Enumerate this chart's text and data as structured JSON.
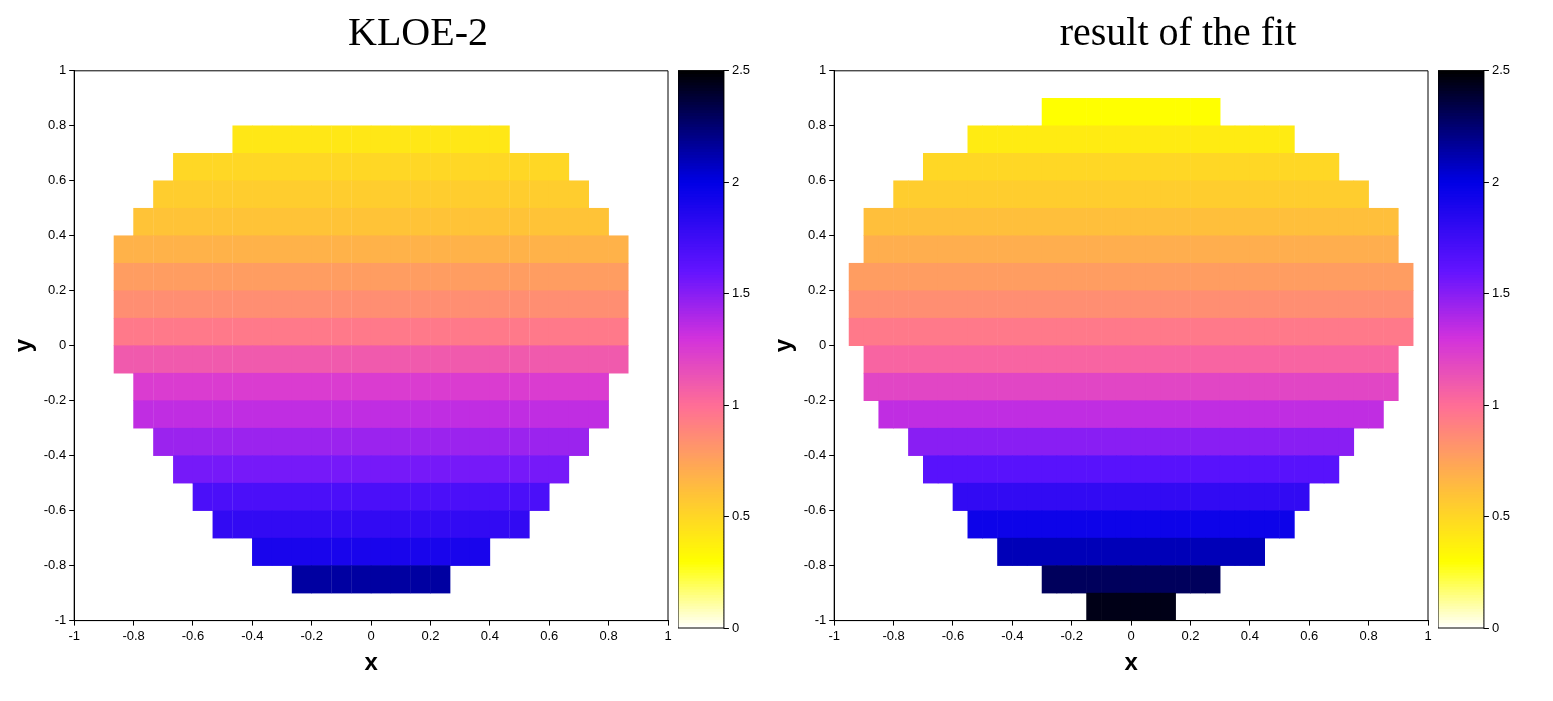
{
  "chart_data": [
    {
      "type": "heatmap",
      "title": "KLOE-2",
      "xlabel": "x",
      "ylabel": "y",
      "xlim": [
        -1,
        1
      ],
      "ylim": [
        -1,
        1
      ],
      "xticks": [
        -1,
        -0.8,
        -0.6,
        -0.4,
        -0.2,
        0,
        0.2,
        0.4,
        0.6,
        0.8,
        1
      ],
      "yticks": [
        -1,
        -0.8,
        -0.6,
        -0.4,
        -0.2,
        0,
        0.2,
        0.4,
        0.6,
        0.8,
        1
      ],
      "clim": [
        0,
        2.5
      ],
      "cticks": [
        0,
        0.5,
        1,
        1.5,
        2,
        2.5
      ],
      "x": [
        -0.833,
        -0.767,
        -0.7,
        -0.633,
        -0.567,
        -0.5,
        -0.433,
        -0.367,
        -0.3,
        -0.233,
        -0.167,
        -0.1,
        -0.033,
        0.033,
        0.1,
        0.167,
        0.233,
        0.3,
        0.367,
        0.433,
        0.5,
        0.567,
        0.633,
        0.7,
        0.767,
        0.833
      ],
      "y": [
        0.75,
        0.65,
        0.55,
        0.45,
        0.35,
        0.25,
        0.15,
        0.05,
        -0.05,
        -0.15,
        -0.25,
        -0.35,
        -0.45,
        -0.55,
        -0.65,
        -0.75,
        -0.85
      ],
      "cells": [
        [
          null,
          null,
          null,
          null,
          null,
          null,
          0.42,
          0.42,
          0.42,
          0.42,
          0.42,
          0.42,
          0.42,
          0.42,
          0.42,
          0.42,
          0.42,
          0.42,
          0.42,
          0.42,
          null,
          null,
          null,
          null,
          null,
          null
        ],
        [
          null,
          null,
          null,
          0.5,
          0.5,
          0.5,
          0.5,
          0.5,
          0.5,
          0.5,
          0.5,
          0.5,
          0.5,
          0.5,
          0.5,
          0.5,
          0.5,
          0.5,
          0.5,
          0.5,
          0.5,
          0.5,
          0.5,
          null,
          null,
          null
        ],
        [
          null,
          null,
          0.55,
          0.55,
          0.55,
          0.55,
          0.55,
          0.55,
          0.55,
          0.55,
          0.55,
          0.55,
          0.55,
          0.55,
          0.55,
          0.55,
          0.55,
          0.55,
          0.55,
          0.55,
          0.55,
          0.55,
          0.55,
          0.55,
          null,
          null
        ],
        [
          null,
          0.6,
          0.6,
          0.6,
          0.6,
          0.6,
          0.6,
          0.6,
          0.6,
          0.6,
          0.6,
          0.6,
          0.6,
          0.6,
          0.6,
          0.6,
          0.6,
          0.6,
          0.6,
          0.6,
          0.6,
          0.6,
          0.6,
          0.6,
          0.6,
          null
        ],
        [
          0.68,
          0.68,
          0.68,
          0.68,
          0.68,
          0.68,
          0.68,
          0.68,
          0.68,
          0.68,
          0.68,
          0.68,
          0.68,
          0.68,
          0.68,
          0.68,
          0.68,
          0.68,
          0.68,
          0.68,
          0.68,
          0.68,
          0.68,
          0.68,
          0.68,
          0.68
        ],
        [
          0.78,
          0.78,
          0.78,
          0.78,
          0.78,
          0.78,
          0.78,
          0.78,
          0.78,
          0.78,
          0.78,
          0.78,
          0.78,
          0.78,
          0.78,
          0.78,
          0.78,
          0.78,
          0.78,
          0.78,
          0.78,
          0.78,
          0.78,
          0.78,
          0.78,
          0.78
        ],
        [
          0.85,
          0.85,
          0.85,
          0.85,
          0.85,
          0.85,
          0.85,
          0.85,
          0.85,
          0.85,
          0.85,
          0.85,
          0.85,
          0.85,
          0.85,
          0.85,
          0.85,
          0.85,
          0.85,
          0.85,
          0.85,
          0.85,
          0.85,
          0.85,
          0.85,
          0.85
        ],
        [
          0.95,
          0.95,
          0.95,
          0.95,
          0.95,
          0.95,
          0.95,
          0.95,
          0.95,
          0.95,
          0.95,
          0.95,
          0.95,
          0.95,
          0.95,
          0.95,
          0.95,
          0.95,
          0.95,
          0.95,
          0.95,
          0.95,
          0.95,
          0.95,
          0.95,
          0.95
        ],
        [
          1.1,
          1.1,
          1.1,
          1.1,
          1.1,
          1.1,
          1.1,
          1.1,
          1.1,
          1.1,
          1.1,
          1.1,
          1.1,
          1.1,
          1.1,
          1.1,
          1.1,
          1.1,
          1.1,
          1.1,
          1.1,
          1.1,
          1.1,
          1.1,
          1.1,
          1.1
        ],
        [
          null,
          1.25,
          1.25,
          1.25,
          1.25,
          1.25,
          1.25,
          1.25,
          1.25,
          1.25,
          1.25,
          1.25,
          1.25,
          1.25,
          1.25,
          1.25,
          1.25,
          1.25,
          1.25,
          1.25,
          1.25,
          1.25,
          1.25,
          1.25,
          1.25,
          null
        ],
        [
          null,
          1.35,
          1.35,
          1.35,
          1.35,
          1.35,
          1.35,
          1.35,
          1.35,
          1.35,
          1.35,
          1.35,
          1.35,
          1.35,
          1.35,
          1.35,
          1.35,
          1.35,
          1.35,
          1.35,
          1.35,
          1.35,
          1.35,
          1.35,
          1.35,
          null
        ],
        [
          null,
          null,
          1.45,
          1.45,
          1.45,
          1.45,
          1.45,
          1.45,
          1.45,
          1.45,
          1.45,
          1.45,
          1.45,
          1.45,
          1.45,
          1.45,
          1.45,
          1.45,
          1.45,
          1.45,
          1.45,
          1.45,
          1.45,
          1.45,
          null,
          null
        ],
        [
          null,
          null,
          null,
          1.55,
          1.55,
          1.55,
          1.55,
          1.55,
          1.55,
          1.55,
          1.55,
          1.55,
          1.55,
          1.55,
          1.55,
          1.55,
          1.55,
          1.55,
          1.55,
          1.55,
          1.55,
          1.55,
          1.55,
          null,
          null,
          null
        ],
        [
          null,
          null,
          null,
          null,
          1.7,
          1.7,
          1.7,
          1.7,
          1.7,
          1.7,
          1.7,
          1.7,
          1.7,
          1.7,
          1.7,
          1.7,
          1.7,
          1.7,
          1.7,
          1.7,
          1.7,
          1.7,
          null,
          null,
          null,
          null
        ],
        [
          null,
          null,
          null,
          null,
          null,
          1.8,
          1.8,
          1.8,
          1.8,
          1.8,
          1.8,
          1.8,
          1.8,
          1.8,
          1.8,
          1.8,
          1.8,
          1.8,
          1.8,
          1.8,
          1.8,
          null,
          null,
          null,
          null,
          null
        ],
        [
          null,
          null,
          null,
          null,
          null,
          null,
          null,
          1.9,
          1.9,
          1.9,
          1.9,
          1.9,
          1.9,
          1.9,
          1.9,
          1.9,
          1.9,
          1.9,
          1.9,
          null,
          null,
          null,
          null,
          null,
          null,
          null
        ],
        [
          null,
          null,
          null,
          null,
          null,
          null,
          null,
          null,
          null,
          2.15,
          2.15,
          2.15,
          2.15,
          2.15,
          2.15,
          2.15,
          2.15,
          null,
          null,
          null,
          null,
          null,
          null,
          null,
          null,
          null
        ]
      ]
    },
    {
      "type": "heatmap",
      "title": "result of the fit",
      "xlabel": "x",
      "ylabel": "y",
      "xlim": [
        -1,
        1
      ],
      "ylim": [
        -1,
        1
      ],
      "xticks": [
        -1,
        -0.8,
        -0.6,
        -0.4,
        -0.2,
        0,
        0.2,
        0.4,
        0.6,
        0.8,
        1
      ],
      "yticks": [
        -1,
        -0.8,
        -0.6,
        -0.4,
        -0.2,
        0,
        0.2,
        0.4,
        0.6,
        0.8,
        1
      ],
      "clim": [
        0,
        2.5
      ],
      "cticks": [
        0,
        0.5,
        1,
        1.5,
        2,
        2.5
      ],
      "x": [
        -0.925,
        -0.875,
        -0.825,
        -0.775,
        -0.725,
        -0.675,
        -0.625,
        -0.575,
        -0.525,
        -0.475,
        -0.425,
        -0.375,
        -0.325,
        -0.275,
        -0.225,
        -0.175,
        -0.125,
        -0.075,
        -0.025,
        0.025,
        0.075,
        0.125,
        0.175,
        0.225,
        0.275,
        0.325,
        0.375,
        0.425,
        0.475,
        0.525,
        0.575,
        0.625,
        0.675,
        0.725,
        0.775,
        0.825,
        0.875,
        0.925
      ],
      "y": [
        0.85,
        0.75,
        0.65,
        0.55,
        0.45,
        0.35,
        0.25,
        0.15,
        0.05,
        -0.05,
        -0.15,
        -0.25,
        -0.35,
        -0.45,
        -0.55,
        -0.65,
        -0.75,
        -0.85,
        -0.95
      ],
      "cells": [
        [
          null,
          null,
          null,
          null,
          null,
          null,
          null,
          null,
          null,
          null,
          null,
          null,
          null,
          0.3,
          0.3,
          0.3,
          0.3,
          0.3,
          0.3,
          0.3,
          0.3,
          0.3,
          0.3,
          0.3,
          0.3,
          null,
          null,
          null,
          null,
          null,
          null,
          null,
          null,
          null,
          null,
          null,
          null,
          null
        ],
        [
          null,
          null,
          null,
          null,
          null,
          null,
          null,
          null,
          0.4,
          0.4,
          0.4,
          0.4,
          0.4,
          0.4,
          0.4,
          0.4,
          0.4,
          0.4,
          0.4,
          0.4,
          0.4,
          0.4,
          0.4,
          0.4,
          0.4,
          0.4,
          0.4,
          0.4,
          0.4,
          0.4,
          null,
          null,
          null,
          null,
          null,
          null,
          null,
          null
        ],
        [
          null,
          null,
          null,
          null,
          null,
          0.5,
          0.5,
          0.5,
          0.5,
          0.5,
          0.5,
          0.5,
          0.5,
          0.5,
          0.5,
          0.5,
          0.5,
          0.5,
          0.5,
          0.5,
          0.5,
          0.5,
          0.5,
          0.5,
          0.5,
          0.5,
          0.5,
          0.5,
          0.5,
          0.5,
          0.5,
          0.5,
          0.5,
          null,
          null,
          null,
          null,
          null
        ],
        [
          null,
          null,
          null,
          0.55,
          0.55,
          0.55,
          0.55,
          0.55,
          0.55,
          0.55,
          0.55,
          0.55,
          0.55,
          0.55,
          0.55,
          0.55,
          0.55,
          0.55,
          0.55,
          0.55,
          0.55,
          0.55,
          0.55,
          0.55,
          0.55,
          0.55,
          0.55,
          0.55,
          0.55,
          0.55,
          0.55,
          0.55,
          0.55,
          0.55,
          0.55,
          null,
          null,
          null
        ],
        [
          null,
          0.62,
          0.62,
          0.62,
          0.62,
          0.62,
          0.62,
          0.62,
          0.62,
          0.62,
          0.62,
          0.62,
          0.62,
          0.62,
          0.62,
          0.62,
          0.62,
          0.62,
          0.62,
          0.62,
          0.62,
          0.62,
          0.62,
          0.62,
          0.62,
          0.62,
          0.62,
          0.62,
          0.62,
          0.62,
          0.62,
          0.62,
          0.62,
          0.62,
          0.62,
          0.62,
          0.62,
          null
        ],
        [
          null,
          0.7,
          0.7,
          0.7,
          0.7,
          0.7,
          0.7,
          0.7,
          0.7,
          0.7,
          0.7,
          0.7,
          0.7,
          0.7,
          0.7,
          0.7,
          0.7,
          0.7,
          0.7,
          0.7,
          0.7,
          0.7,
          0.7,
          0.7,
          0.7,
          0.7,
          0.7,
          0.7,
          0.7,
          0.7,
          0.7,
          0.7,
          0.7,
          0.7,
          0.7,
          0.7,
          0.7,
          null
        ],
        [
          0.78,
          0.78,
          0.78,
          0.78,
          0.78,
          0.78,
          0.78,
          0.78,
          0.78,
          0.78,
          0.78,
          0.78,
          0.78,
          0.78,
          0.78,
          0.78,
          0.78,
          0.78,
          0.78,
          0.78,
          0.78,
          0.78,
          0.78,
          0.78,
          0.78,
          0.78,
          0.78,
          0.78,
          0.78,
          0.78,
          0.78,
          0.78,
          0.78,
          0.78,
          0.78,
          0.78,
          0.78,
          0.78
        ],
        [
          0.85,
          0.85,
          0.85,
          0.85,
          0.85,
          0.85,
          0.85,
          0.85,
          0.85,
          0.85,
          0.85,
          0.85,
          0.85,
          0.85,
          0.85,
          0.85,
          0.85,
          0.85,
          0.85,
          0.85,
          0.85,
          0.85,
          0.85,
          0.85,
          0.85,
          0.85,
          0.85,
          0.85,
          0.85,
          0.85,
          0.85,
          0.85,
          0.85,
          0.85,
          0.85,
          0.85,
          0.85,
          0.85
        ],
        [
          0.95,
          0.95,
          0.95,
          0.95,
          0.95,
          0.95,
          0.95,
          0.95,
          0.95,
          0.95,
          0.95,
          0.95,
          0.95,
          0.95,
          0.95,
          0.95,
          0.95,
          0.95,
          0.95,
          0.95,
          0.95,
          0.95,
          0.95,
          0.95,
          0.95,
          0.95,
          0.95,
          0.95,
          0.95,
          0.95,
          0.95,
          0.95,
          0.95,
          0.95,
          0.95,
          0.95,
          0.95,
          0.95
        ],
        [
          null,
          1.05,
          1.05,
          1.05,
          1.05,
          1.05,
          1.05,
          1.05,
          1.05,
          1.05,
          1.05,
          1.05,
          1.05,
          1.05,
          1.05,
          1.05,
          1.05,
          1.05,
          1.05,
          1.05,
          1.05,
          1.05,
          1.05,
          1.05,
          1.05,
          1.05,
          1.05,
          1.05,
          1.05,
          1.05,
          1.05,
          1.05,
          1.05,
          1.05,
          1.05,
          1.05,
          1.05,
          null
        ],
        [
          null,
          1.2,
          1.2,
          1.2,
          1.2,
          1.2,
          1.2,
          1.2,
          1.2,
          1.2,
          1.2,
          1.2,
          1.2,
          1.2,
          1.2,
          1.2,
          1.2,
          1.2,
          1.2,
          1.2,
          1.2,
          1.2,
          1.2,
          1.2,
          1.2,
          1.2,
          1.2,
          1.2,
          1.2,
          1.2,
          1.2,
          1.2,
          1.2,
          1.2,
          1.2,
          1.2,
          1.2,
          null
        ],
        [
          null,
          null,
          1.35,
          1.35,
          1.35,
          1.35,
          1.35,
          1.35,
          1.35,
          1.35,
          1.35,
          1.35,
          1.35,
          1.35,
          1.35,
          1.35,
          1.35,
          1.35,
          1.35,
          1.35,
          1.35,
          1.35,
          1.35,
          1.35,
          1.35,
          1.35,
          1.35,
          1.35,
          1.35,
          1.35,
          1.35,
          1.35,
          1.35,
          1.35,
          1.35,
          1.35,
          null,
          null
        ],
        [
          null,
          null,
          null,
          null,
          1.5,
          1.5,
          1.5,
          1.5,
          1.5,
          1.5,
          1.5,
          1.5,
          1.5,
          1.5,
          1.5,
          1.5,
          1.5,
          1.5,
          1.5,
          1.5,
          1.5,
          1.5,
          1.5,
          1.5,
          1.5,
          1.5,
          1.5,
          1.5,
          1.5,
          1.5,
          1.5,
          1.5,
          1.5,
          1.5,
          null,
          null,
          null,
          null
        ],
        [
          null,
          null,
          null,
          null,
          null,
          1.65,
          1.65,
          1.65,
          1.65,
          1.65,
          1.65,
          1.65,
          1.65,
          1.65,
          1.65,
          1.65,
          1.65,
          1.65,
          1.65,
          1.65,
          1.65,
          1.65,
          1.65,
          1.65,
          1.65,
          1.65,
          1.65,
          1.65,
          1.65,
          1.65,
          1.65,
          1.65,
          1.65,
          null,
          null,
          null,
          null,
          null
        ],
        [
          null,
          null,
          null,
          null,
          null,
          null,
          null,
          1.8,
          1.8,
          1.8,
          1.8,
          1.8,
          1.8,
          1.8,
          1.8,
          1.8,
          1.8,
          1.8,
          1.8,
          1.8,
          1.8,
          1.8,
          1.8,
          1.8,
          1.8,
          1.8,
          1.8,
          1.8,
          1.8,
          1.8,
          1.8,
          null,
          null,
          null,
          null,
          null,
          null,
          null
        ],
        [
          null,
          null,
          null,
          null,
          null,
          null,
          null,
          null,
          1.95,
          1.95,
          1.95,
          1.95,
          1.95,
          1.95,
          1.95,
          1.95,
          1.95,
          1.95,
          1.95,
          1.95,
          1.95,
          1.95,
          1.95,
          1.95,
          1.95,
          1.95,
          1.95,
          1.95,
          1.95,
          1.95,
          null,
          null,
          null,
          null,
          null,
          null,
          null,
          null
        ],
        [
          null,
          null,
          null,
          null,
          null,
          null,
          null,
          null,
          null,
          null,
          2.1,
          2.1,
          2.1,
          2.1,
          2.1,
          2.1,
          2.1,
          2.1,
          2.1,
          2.1,
          2.1,
          2.1,
          2.1,
          2.1,
          2.1,
          2.1,
          2.1,
          2.1,
          null,
          null,
          null,
          null,
          null,
          null,
          null,
          null,
          null,
          null
        ],
        [
          null,
          null,
          null,
          null,
          null,
          null,
          null,
          null,
          null,
          null,
          null,
          null,
          null,
          2.3,
          2.3,
          2.3,
          2.3,
          2.3,
          2.3,
          2.3,
          2.3,
          2.3,
          2.3,
          2.3,
          2.3,
          null,
          null,
          null,
          null,
          null,
          null,
          null,
          null,
          null,
          null,
          null,
          null,
          null
        ],
        [
          null,
          null,
          null,
          null,
          null,
          null,
          null,
          null,
          null,
          null,
          null,
          null,
          null,
          null,
          null,
          null,
          2.45,
          2.45,
          2.45,
          2.45,
          2.45,
          2.45,
          null,
          null,
          null,
          null,
          null,
          null,
          null,
          null,
          null,
          null,
          null,
          null,
          null,
          null,
          null,
          null
        ]
      ]
    }
  ]
}
